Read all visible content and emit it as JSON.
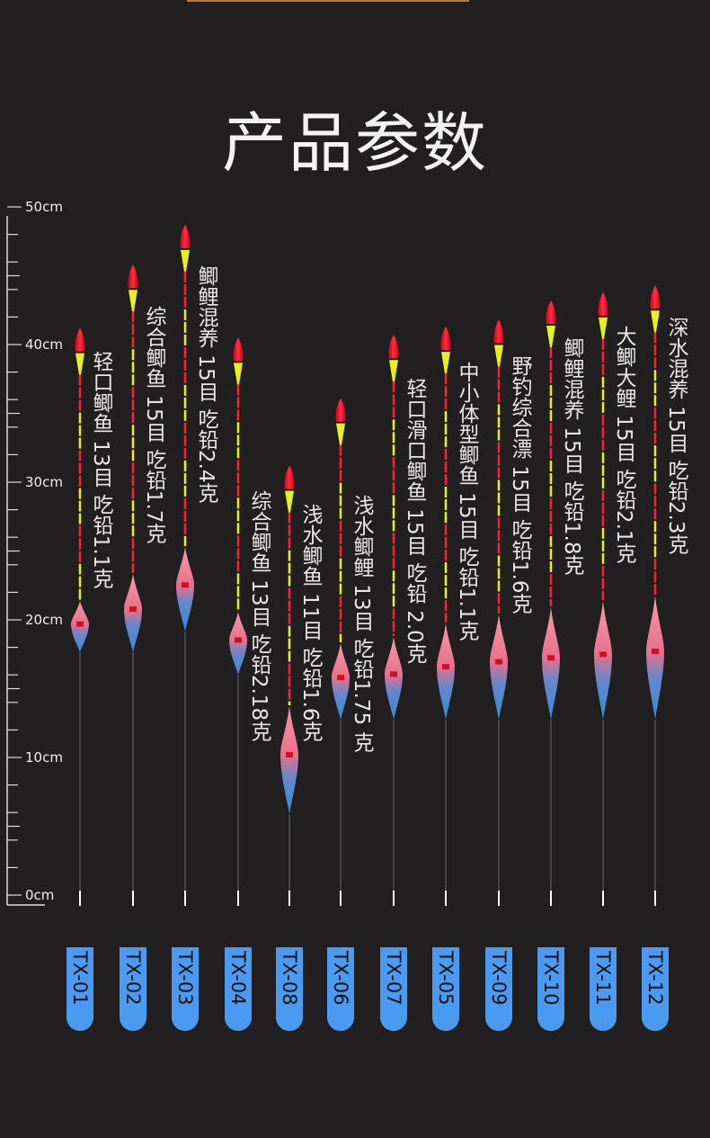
{
  "title": "产品参数",
  "scale": {
    "unit": "cm",
    "labels": [
      {
        "value": 50,
        "text": "50cm"
      },
      {
        "value": 40,
        "text": "40cm"
      },
      {
        "value": 30,
        "text": "30cm"
      },
      {
        "value": 20,
        "text": "20cm"
      },
      {
        "value": 10,
        "text": "10cm"
      },
      {
        "value": 0,
        "text": "0cm"
      }
    ]
  },
  "floats": [
    {
      "model": "TX-01",
      "label": "轻口鲫鱼 13目 吃铅1.1克",
      "top_cm": 41.2
    },
    {
      "model": "TX-02",
      "label": "综合鲫鱼 15目 吃铅1.7克",
      "top_cm": 45.8
    },
    {
      "model": "TX-03",
      "label": "鲫鲤混养 15目 吃铅2.4克",
      "top_cm": 48.7
    },
    {
      "model": "TX-04",
      "label": "综合鲫鱼 13目 吃铅2.18克",
      "top_cm": 40.5
    },
    {
      "model": "TX-08",
      "label": "浅水鲫鱼 11目 吃铅1.6克",
      "top_cm": 31.2
    },
    {
      "model": "TX-06",
      "label": "浅水鲫鲤 13目 吃铅1.75 克",
      "top_cm": 36.1
    },
    {
      "model": "TX-07",
      "label": "轻口滑口鲫鱼 15目 吃铅 2.0克",
      "top_cm": 40.7
    },
    {
      "model": "TX-05",
      "label": "中小体型鲫鱼 15目 吃铅1.1克",
      "top_cm": 41.3
    },
    {
      "model": "TX-09",
      "label": "野钓综合漂 15目 吃铅1.6克",
      "top_cm": 41.8
    },
    {
      "model": "TX-10",
      "label": "鲫鲤混养 15目 吃铅1.8克",
      "top_cm": 43.2
    },
    {
      "model": "TX-11",
      "label": "大鲫大鲤 15目 吃铅2.1克",
      "top_cm": 43.8
    },
    {
      "model": "TX-12",
      "label": "深水混养 15目 吃铅2.3克",
      "top_cm": 44.3
    }
  ],
  "colors": {
    "badge": "#4a9af2",
    "tip_red": "#ff1a2e",
    "tip_yellow": "#e8f020",
    "body_pink": "#f07a90",
    "body_blue": "#3a8ad0"
  }
}
